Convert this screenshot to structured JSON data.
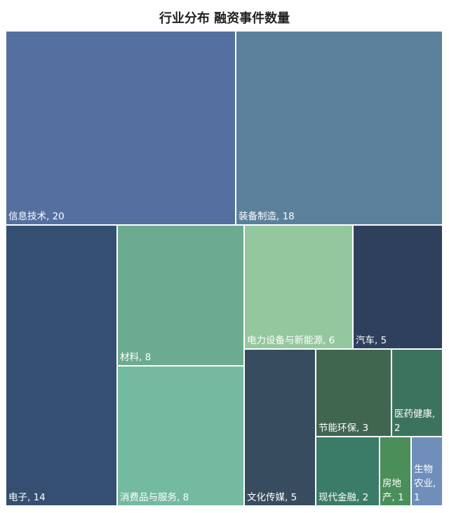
{
  "chart_data": {
    "type": "treemap",
    "title": "行业分布 融资事件数量",
    "items": [
      {
        "name": "信息技术",
        "value": 20,
        "label": [
          "信息技术, 20"
        ],
        "color": "#5470a0"
      },
      {
        "name": "装备制造",
        "value": 18,
        "label": [
          "装备制造, 18"
        ],
        "color": "#5b809c"
      },
      {
        "name": "电子",
        "value": 14,
        "label": [
          "电子, 14"
        ],
        "color": "#344f72"
      },
      {
        "name": "材料",
        "value": 8,
        "label": [
          "材料, 8"
        ],
        "color": "#6cab8f"
      },
      {
        "name": "消费品与服务",
        "value": 8,
        "label": [
          "消费品与服务, 8"
        ],
        "color": "#73baa0"
      },
      {
        "name": "电力设备与新能源",
        "value": 6,
        "label": [
          "电力设备与新能源, 6"
        ],
        "color": "#95c79f"
      },
      {
        "name": "汽车",
        "value": 5,
        "label": [
          "汽车, 5"
        ],
        "color": "#2f405c"
      },
      {
        "name": "文化传媒",
        "value": 5,
        "label": [
          "文化传媒, 5"
        ],
        "color": "#374c5e"
      },
      {
        "name": "节能环保",
        "value": 3,
        "label": [
          "节能环保, 3"
        ],
        "color": "#406650"
      },
      {
        "name": "医药健康",
        "value": 2,
        "label": [
          "医药健康,",
          "2"
        ],
        "color": "#3c735e"
      },
      {
        "name": "现代金融",
        "value": 2,
        "label": [
          "现代金融, 2"
        ],
        "color": "#3b7c68"
      },
      {
        "name": "房地产",
        "value": 1,
        "label": [
          "房地",
          "产, 1"
        ],
        "color": "#4b8e5a"
      },
      {
        "name": "生物农业",
        "value": 1,
        "label": [
          "生物",
          "农业,",
          "1"
        ],
        "color": "#6f8fba"
      }
    ]
  }
}
